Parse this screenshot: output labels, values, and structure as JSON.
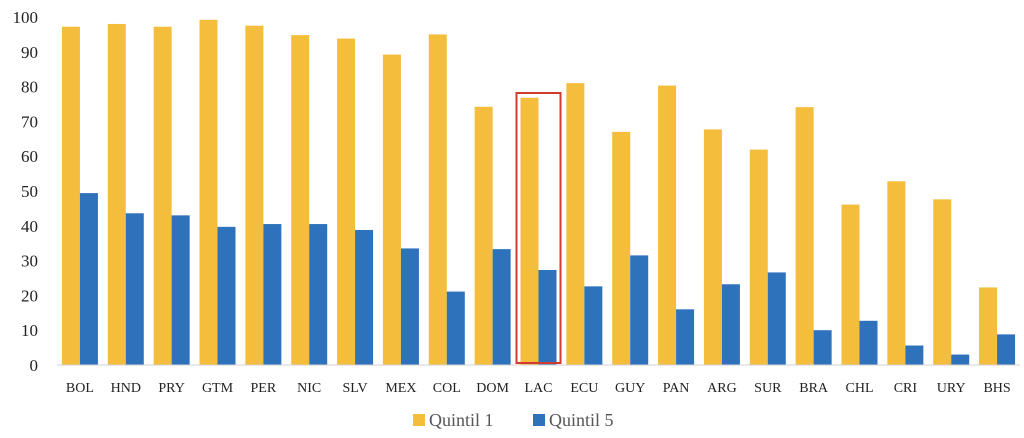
{
  "chart_data": {
    "type": "bar",
    "title": "",
    "xlabel": "",
    "ylabel": "",
    "ylim": [
      0,
      100
    ],
    "yticks": [
      0,
      10,
      20,
      30,
      40,
      50,
      60,
      70,
      80,
      90,
      100
    ],
    "grid": false,
    "legend_position": "bottom-center",
    "categories": [
      "BOL",
      "HND",
      "PRY",
      "GTM",
      "PER",
      "NIC",
      "SLV",
      "MEX",
      "COL",
      "DOM",
      "LAC",
      "ECU",
      "GUY",
      "PAN",
      "ARG",
      "SUR",
      "BRA",
      "CHL",
      "CRI",
      "URY",
      "BHS"
    ],
    "series": [
      {
        "name": "Quintil 1",
        "color": "#F4BD3C",
        "values": [
          97.2,
          98.0,
          97.2,
          99.2,
          97.5,
          94.8,
          93.8,
          89.2,
          95.0,
          74.2,
          76.8,
          81.0,
          67.0,
          80.3,
          67.7,
          61.9,
          74.1,
          46.1,
          52.8,
          47.6,
          22.3
        ]
      },
      {
        "name": "Quintil 5",
        "color": "#2F72BC",
        "values": [
          49.4,
          43.6,
          43.0,
          39.7,
          40.5,
          40.5,
          38.8,
          33.5,
          21.1,
          33.3,
          27.3,
          22.6,
          31.5,
          16.0,
          23.2,
          26.6,
          10.0,
          12.7,
          5.6,
          3.0,
          8.8
        ]
      }
    ],
    "highlight": {
      "category": "LAC",
      "color": "#D23A2E"
    }
  }
}
